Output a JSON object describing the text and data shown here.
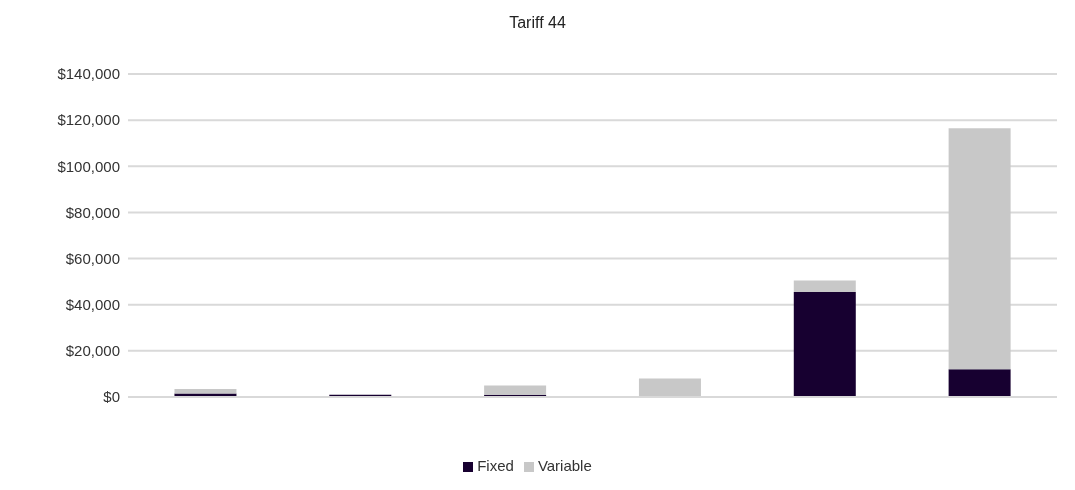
{
  "chart_data": {
    "type": "bar",
    "title": "Tariff 44",
    "categories": [
      null,
      null,
      null,
      null,
      null,
      null
    ],
    "series": [
      {
        "name": "Fixed",
        "color": "#170030",
        "values": [
          1500,
          1000,
          1000,
          0,
          45500,
          12000
        ]
      },
      {
        "name": "Variable",
        "color": "#c8c8c8",
        "values": [
          2000,
          0,
          4000,
          8000,
          5000,
          104500
        ]
      }
    ],
    "stacked": true,
    "ylim": [
      0,
      140000
    ],
    "yticks": [
      {
        "value": 0,
        "label": "$0"
      },
      {
        "value": 20000,
        "label": "$20,000"
      },
      {
        "value": 40000,
        "label": "$40,000"
      },
      {
        "value": 60000,
        "label": "$60,000"
      },
      {
        "value": 80000,
        "label": "$80,000"
      },
      {
        "value": 100000,
        "label": "$100,000"
      },
      {
        "value": 120000,
        "label": "$120,000"
      },
      {
        "value": 140000,
        "label": "$140,000"
      }
    ],
    "grid": "y",
    "legend": "bottom"
  }
}
